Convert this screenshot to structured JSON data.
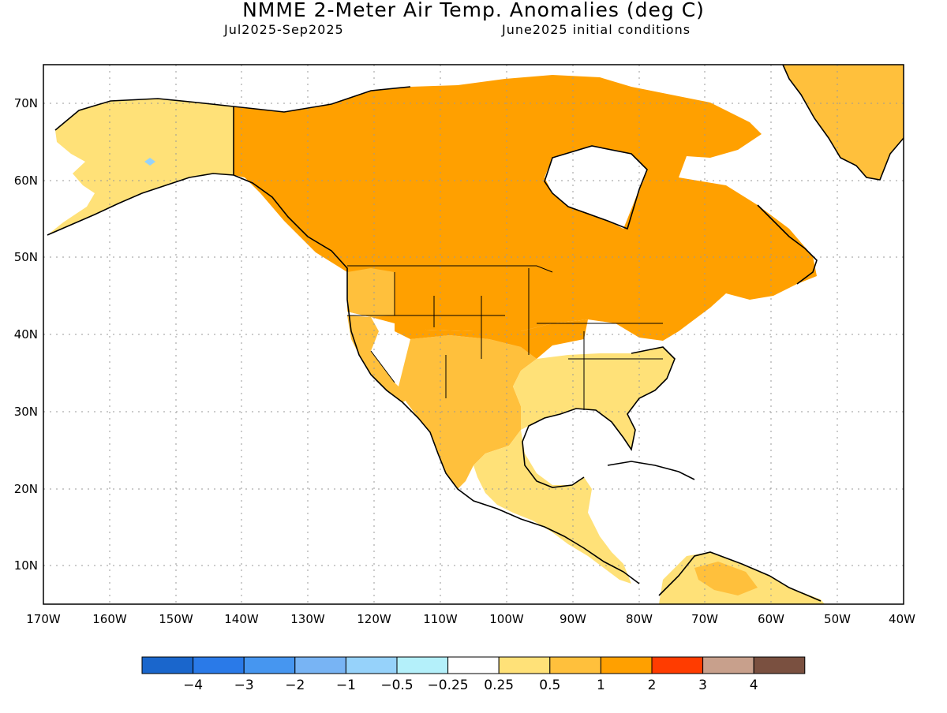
{
  "title": "NMME 2-Meter Air Temp. Anomalies (deg C)",
  "subtitle_left": "Jul2025-Sep2025",
  "subtitle_right": "June2025 initial conditions",
  "lat_ticks": [
    "10N",
    "20N",
    "30N",
    "40N",
    "50N",
    "60N",
    "70N"
  ],
  "lon_ticks": [
    "170W",
    "160W",
    "150W",
    "140W",
    "130W",
    "120W",
    "110W",
    "100W",
    "90W",
    "80W",
    "70W",
    "60W",
    "50W",
    "40W"
  ],
  "colorbar": {
    "colors": [
      "#1a66cc",
      "#2a7ae8",
      "#4696f0",
      "#78b4f4",
      "#96d2fa",
      "#b4f0fa",
      "#ffffff",
      "#ffe178",
      "#ffc03c",
      "#ffa000",
      "#ff3c00",
      "#c8a08c",
      "#7a5040"
    ],
    "labels": [
      "-4",
      "-3",
      "-2",
      "-1",
      "-0.5",
      "-0.25",
      "0.25",
      "0.5",
      "1",
      "2",
      "3",
      "4"
    ]
  },
  "legend_colors": {
    "ocean": "#ffffff",
    "land_light": "#ffe178",
    "land_mid": "#ffc03c",
    "land_dark": "#ffa000",
    "cool_spot": "#96d2fa"
  }
}
